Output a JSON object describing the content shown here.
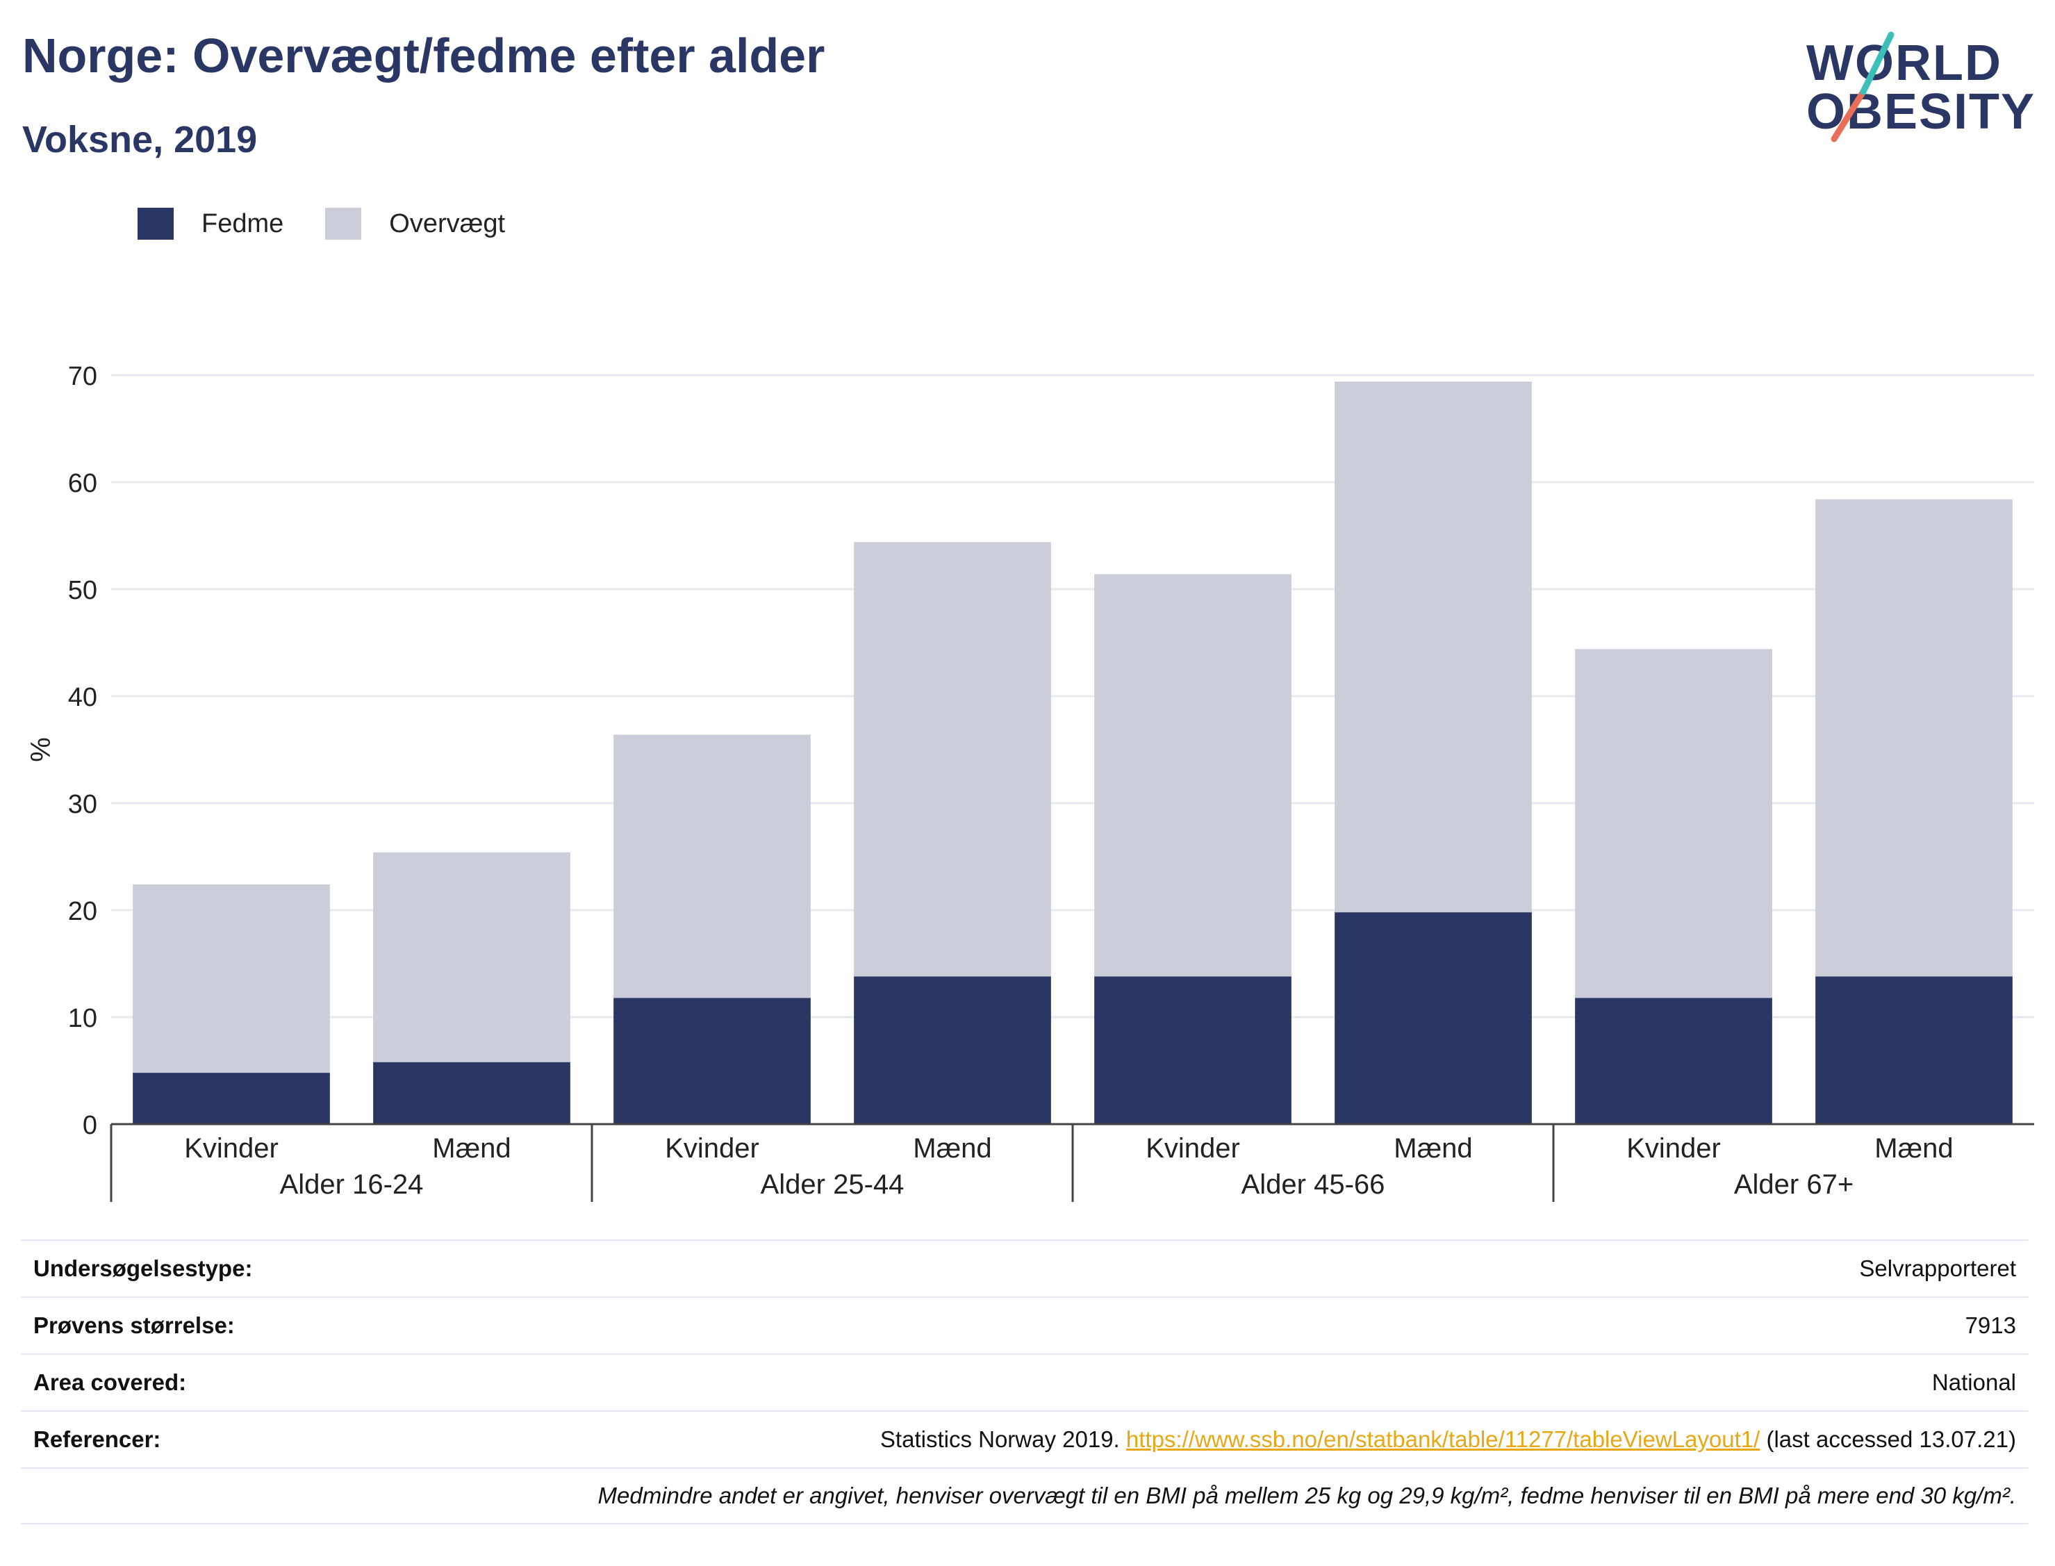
{
  "header": {
    "title": "Norge: Overvægt/fedme efter alder",
    "subtitle": "Voksne, 2019"
  },
  "logo": {
    "line1": "WORLD",
    "line2": "OBESITY",
    "accent_colors": [
      "#3bbfb8",
      "#e8705a"
    ]
  },
  "legend": [
    {
      "label": "Fedme",
      "color": "#2a3764"
    },
    {
      "label": "Overvægt",
      "color": "#cbcdd8"
    }
  ],
  "chart_data": {
    "type": "bar",
    "stacked": true,
    "ylabel": "%",
    "ylim": [
      0,
      70
    ],
    "yticks": [
      0,
      10,
      20,
      30,
      40,
      50,
      60,
      70
    ],
    "grid": true,
    "legend_position": "top-left",
    "categories": [
      "Kvinder",
      "Mænd",
      "Kvinder",
      "Mænd",
      "Kvinder",
      "Mænd",
      "Kvinder",
      "Mænd"
    ],
    "groups": [
      "Alder 16-24",
      "Alder 25-44",
      "Alder 45-66",
      "Alder 67+"
    ],
    "series": [
      {
        "name": "Fedme",
        "color": "#2a3764",
        "values": [
          4.8,
          5.8,
          11.8,
          13.8,
          13.8,
          19.8,
          11.8,
          13.8
        ]
      },
      {
        "name": "Overvægt",
        "color": "#cbcdd8",
        "values": [
          17.6,
          19.6,
          24.6,
          40.6,
          37.6,
          49.6,
          32.6,
          44.6
        ]
      }
    ]
  },
  "info": {
    "rows": [
      {
        "label": "Undersøgelsestype:",
        "value": "Selvrapporteret"
      },
      {
        "label": "Prøvens størrelse:",
        "value": "7913"
      },
      {
        "label": "Area covered:",
        "value": "National"
      }
    ],
    "references": {
      "label": "Referencer:",
      "prefix": "Statistics Norway 2019. ",
      "link": "https://www.ssb.no/en/statbank/table/11277/tableViewLayout1/",
      "suffix": " (last accessed 13.07.21)"
    },
    "note": "Medmindre andet er angivet, henviser overvægt til en BMI på mellem 25 kg og 29,9 kg/m², fedme henviser til en BMI på mere end 30 kg/m²."
  }
}
